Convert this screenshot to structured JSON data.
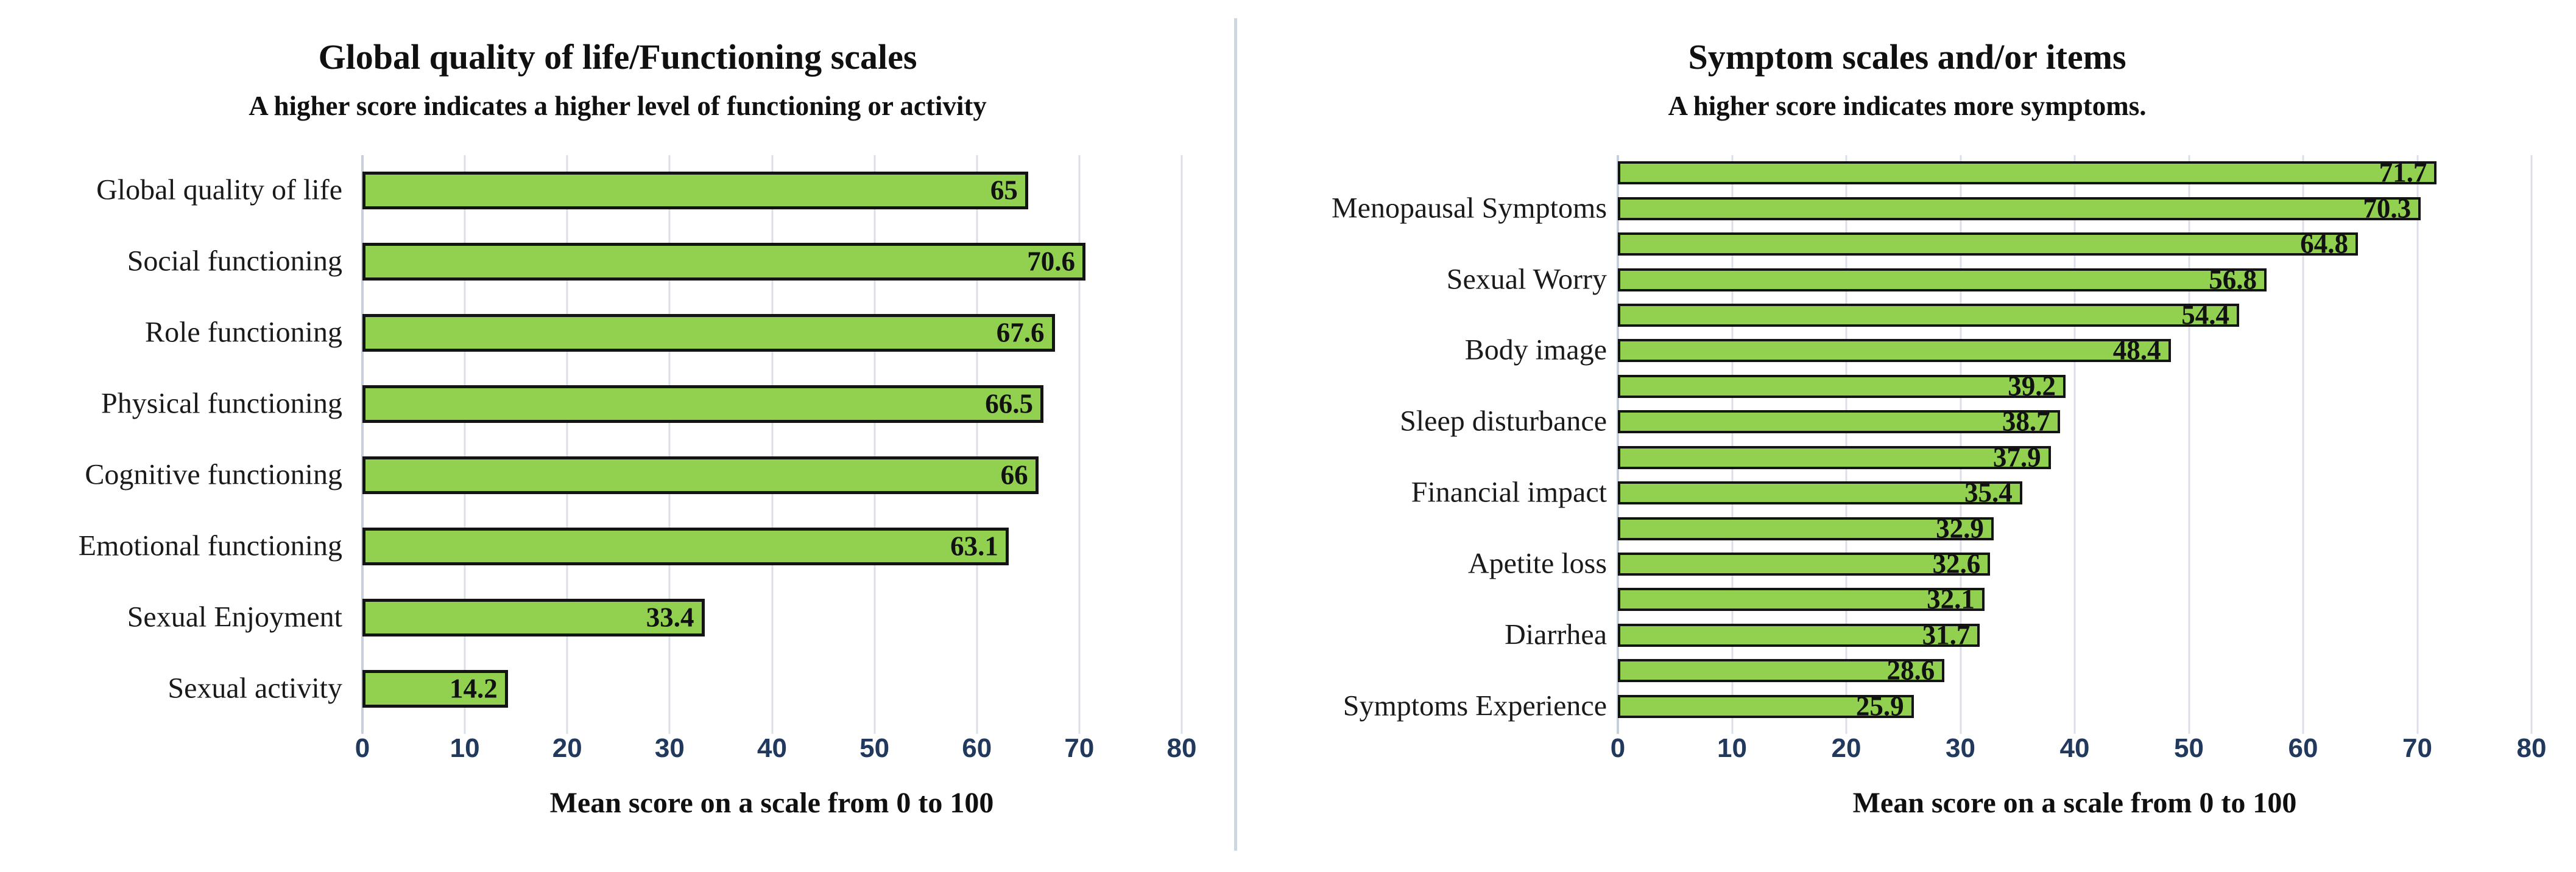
{
  "figure": {
    "background_color": "#ffffff",
    "bar_fill_color": "#92d050",
    "bar_border_color": "#141414",
    "tick_label_color": "#22395e",
    "gridline_color": "#dcdfe9",
    "divider_color": "#cfd6e0"
  },
  "chart_data": [
    {
      "type": "bar",
      "orientation": "horizontal",
      "title": "Global quality of life/Functioning scales",
      "subtitle": "A higher score indicates a higher level of functioning or activity",
      "xlabel": "Mean score on a scale from 0 to 100",
      "xlim": [
        0,
        80
      ],
      "xticks": [
        0,
        10,
        20,
        30,
        40,
        50,
        60,
        70,
        80
      ],
      "grid": "vertical",
      "legend": "none",
      "categories": [
        "Global quality of life",
        "Social functioning",
        "Role functioning",
        "Physical functioning",
        "Cognitive functioning",
        "Emotional functioning",
        "Sexual Enjoyment",
        "Sexual activity"
      ],
      "values": [
        65,
        70.6,
        67.6,
        66.5,
        66,
        63.1,
        33.4,
        14.2
      ]
    },
    {
      "type": "bar",
      "orientation": "horizontal",
      "title": "Symptom scales and/or items",
      "subtitle": "A higher score indicates more symptoms.",
      "xlabel": "Mean score on a scale from 0 to 100",
      "xlim": [
        0,
        80
      ],
      "xticks": [
        0,
        10,
        20,
        30,
        40,
        50,
        60,
        70,
        80
      ],
      "grid": "vertical",
      "legend": "none",
      "note": "two bars per labelled category; label sits on the second bar of each pair",
      "groups": [
        {
          "label": "Menopausal Symptoms",
          "values": [
            71.7,
            70.3
          ]
        },
        {
          "label": "Sexual Worry",
          "values": [
            64.8,
            56.8
          ]
        },
        {
          "label": "Body image",
          "values": [
            54.4,
            48.4
          ]
        },
        {
          "label": "Sleep disturbance",
          "values": [
            39.2,
            38.7
          ]
        },
        {
          "label": "Financial impact",
          "values": [
            37.9,
            35.4
          ]
        },
        {
          "label": "Apetite loss",
          "values": [
            32.9,
            32.6
          ]
        },
        {
          "label": "Diarrhea",
          "values": [
            32.1,
            31.7
          ]
        },
        {
          "label": "Symptoms Experience",
          "values": [
            28.6,
            25.9
          ]
        }
      ]
    }
  ]
}
